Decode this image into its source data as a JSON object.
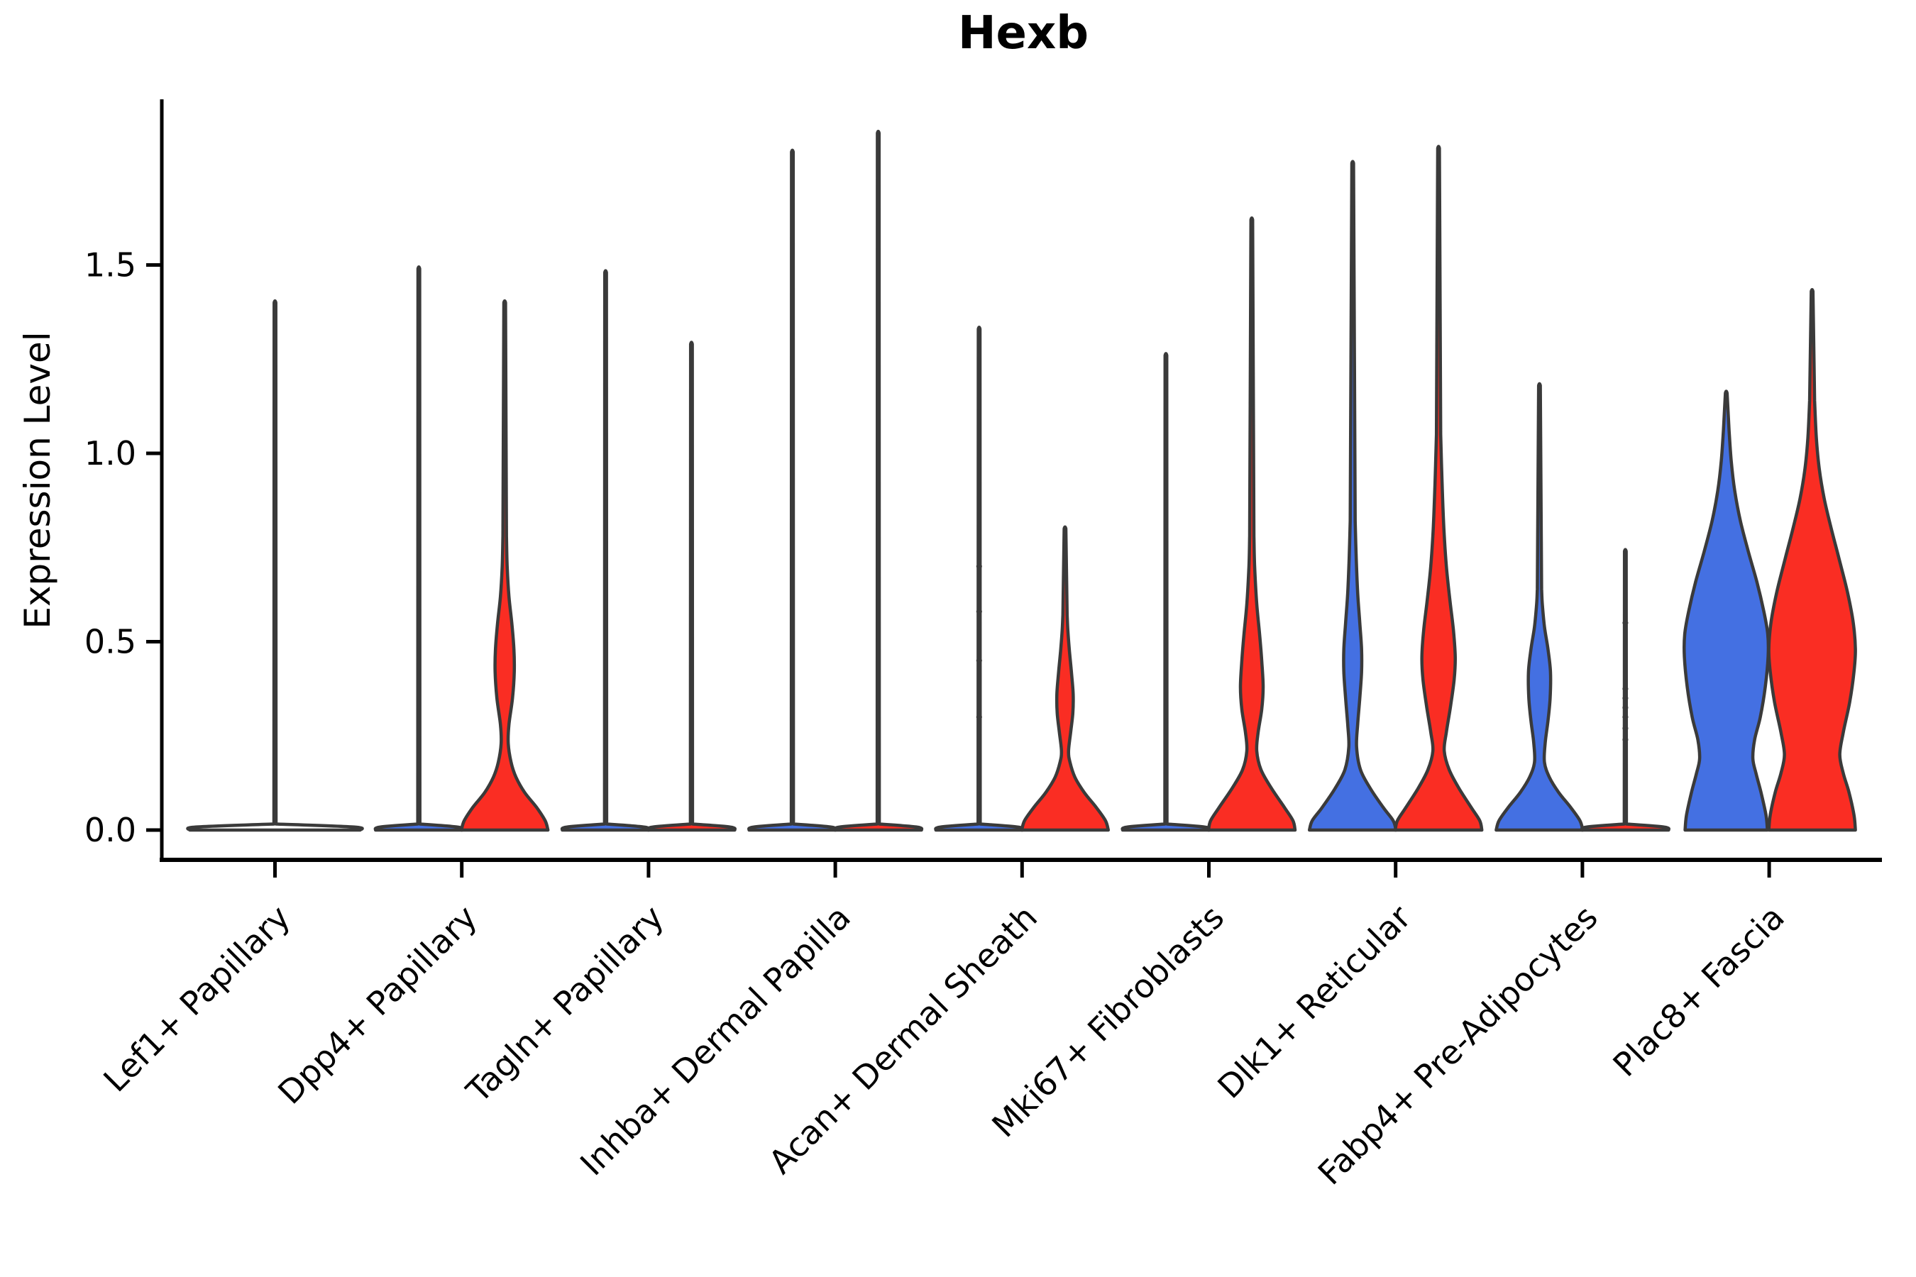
{
  "chart_data": {
    "type": "violin",
    "title": "Hexb",
    "ylabel": "Expression Level",
    "ylim": [
      -0.08,
      1.95
    ],
    "grid": false,
    "legend": "none",
    "yticks": [
      {
        "v": 0.0,
        "label": "0.0"
      },
      {
        "v": 0.5,
        "label": "0.5"
      },
      {
        "v": 1.0,
        "label": "1.0"
      },
      {
        "v": 1.5,
        "label": "1.5"
      }
    ],
    "group_colors": {
      "blue": "#4470E2",
      "red": "#FA2D23",
      "none": "#FFFFFF"
    },
    "stroke_color": "#3A3A3A",
    "axis_color": "#000000",
    "note": "profile = [expression_value, density_half_width_px]; max = top of distribution spike; offset = horizontal dodge of each group violin from category tick",
    "categories": [
      {
        "label": "Lef1+ Papillary",
        "violins": [
          {
            "group": "none",
            "offset": 0,
            "max": 1.4,
            "profile": [
              [
                0,
                120
              ],
              [
                0.008,
                112
              ],
              [
                0.016,
                1.5
              ]
            ]
          }
        ]
      },
      {
        "label": "Dpp4+ Papillary",
        "violins": [
          {
            "group": "blue",
            "offset": -60.5,
            "max": 1.49,
            "profile": [
              [
                0,
                61
              ],
              [
                0.008,
                55
              ],
              [
                0.016,
                1.5
              ]
            ]
          },
          {
            "group": "red",
            "offset": 60.5,
            "max": 1.4,
            "profile": [
              [
                0,
                61
              ],
              [
                0.025,
                57
              ],
              [
                0.06,
                45
              ],
              [
                0.1,
                28
              ],
              [
                0.14,
                16
              ],
              [
                0.18,
                9
              ],
              [
                0.23,
                5
              ],
              [
                0.28,
                6
              ],
              [
                0.35,
                11
              ],
              [
                0.42,
                13.5
              ],
              [
                0.48,
                13
              ],
              [
                0.55,
                10
              ],
              [
                0.62,
                6
              ],
              [
                0.7,
                3.5
              ],
              [
                0.78,
                2.5
              ]
            ]
          }
        ]
      },
      {
        "label": "Tagln+ Papillary",
        "violins": [
          {
            "group": "blue",
            "offset": -60.5,
            "max": 1.48,
            "profile": [
              [
                0,
                61
              ],
              [
                0.008,
                55
              ],
              [
                0.016,
                1.5
              ]
            ]
          },
          {
            "group": "red",
            "offset": 60.5,
            "max": 1.29,
            "profile": [
              [
                0,
                61
              ],
              [
                0.008,
                55
              ],
              [
                0.016,
                1.5
              ]
            ]
          }
        ]
      },
      {
        "label": "Inhba+ Dermal Papilla",
        "violins": [
          {
            "group": "blue",
            "offset": -60.5,
            "max": 1.8,
            "profile": [
              [
                0,
                61
              ],
              [
                0.008,
                55
              ],
              [
                0.016,
                1.5
              ]
            ]
          },
          {
            "group": "red",
            "offset": 60.5,
            "max": 1.85,
            "profile": [
              [
                0,
                61
              ],
              [
                0.008,
                55
              ],
              [
                0.016,
                1.5
              ]
            ]
          }
        ]
      },
      {
        "label": "Acan+ Dermal Sheath",
        "violins": [
          {
            "group": "blue",
            "offset": -60.5,
            "max": 1.33,
            "dots": [
              0.3,
              0.45,
              0.58,
              0.7
            ],
            "profile": [
              [
                0,
                61
              ],
              [
                0.008,
                55
              ],
              [
                0.016,
                1.5
              ]
            ]
          },
          {
            "group": "red",
            "offset": 60.5,
            "max": 0.8,
            "profile": [
              [
                0,
                61
              ],
              [
                0.025,
                57
              ],
              [
                0.06,
                44
              ],
              [
                0.1,
                27
              ],
              [
                0.14,
                14
              ],
              [
                0.18,
                7
              ],
              [
                0.21,
                5
              ],
              [
                0.26,
                8
              ],
              [
                0.31,
                11
              ],
              [
                0.36,
                11.5
              ],
              [
                0.42,
                9
              ],
              [
                0.48,
                6
              ],
              [
                0.53,
                4
              ],
              [
                0.57,
                3
              ]
            ]
          }
        ]
      },
      {
        "label": "Mki67+ Fibroblasts",
        "violins": [
          {
            "group": "blue",
            "offset": -60.5,
            "max": 1.26,
            "profile": [
              [
                0,
                61
              ],
              [
                0.008,
                55
              ],
              [
                0.016,
                1.5
              ]
            ]
          },
          {
            "group": "red",
            "offset": 60.5,
            "max": 1.62,
            "profile": [
              [
                0,
                61
              ],
              [
                0.025,
                58
              ],
              [
                0.06,
                46
              ],
              [
                0.11,
                28
              ],
              [
                0.16,
                13
              ],
              [
                0.21,
                7
              ],
              [
                0.26,
                9
              ],
              [
                0.32,
                14
              ],
              [
                0.38,
                16
              ],
              [
                0.45,
                14
              ],
              [
                0.52,
                11
              ],
              [
                0.6,
                7
              ],
              [
                0.7,
                4
              ],
              [
                0.78,
                3
              ]
            ]
          }
        ]
      },
      {
        "label": "Dlk1+ Reticular",
        "violins": [
          {
            "group": "blue",
            "offset": -60.5,
            "max": 1.77,
            "profile": [
              [
                0,
                61
              ],
              [
                0.025,
                57
              ],
              [
                0.06,
                43
              ],
              [
                0.11,
                25
              ],
              [
                0.16,
                11
              ],
              [
                0.22,
                5.5
              ],
              [
                0.28,
                7
              ],
              [
                0.35,
                10
              ],
              [
                0.42,
                12.5
              ],
              [
                0.48,
                12.5
              ],
              [
                0.55,
                10
              ],
              [
                0.63,
                7
              ],
              [
                0.72,
                5
              ],
              [
                0.82,
                3.5
              ]
            ]
          },
          {
            "group": "red",
            "offset": 60.5,
            "max": 1.81,
            "profile": [
              [
                0,
                61
              ],
              [
                0.025,
                58
              ],
              [
                0.06,
                46
              ],
              [
                0.11,
                29
              ],
              [
                0.16,
                15
              ],
              [
                0.21,
                8
              ],
              [
                0.26,
                11
              ],
              [
                0.33,
                17
              ],
              [
                0.4,
                22
              ],
              [
                0.46,
                23.5
              ],
              [
                0.53,
                21
              ],
              [
                0.61,
                16
              ],
              [
                0.7,
                11
              ],
              [
                0.8,
                7.5
              ],
              [
                0.92,
                5
              ],
              [
                1.05,
                3
              ]
            ]
          }
        ]
      },
      {
        "label": "Fabp4+ Pre-Adipocytes",
        "violins": [
          {
            "group": "blue",
            "offset": -60.5,
            "max": 1.18,
            "profile": [
              [
                0,
                61
              ],
              [
                0.025,
                57
              ],
              [
                0.06,
                44
              ],
              [
                0.1,
                27
              ],
              [
                0.14,
                14
              ],
              [
                0.18,
                7
              ],
              [
                0.23,
                8
              ],
              [
                0.29,
                12
              ],
              [
                0.35,
                15
              ],
              [
                0.42,
                15.5
              ],
              [
                0.48,
                12
              ],
              [
                0.54,
                7
              ],
              [
                0.6,
                4
              ],
              [
                0.64,
                3
              ]
            ]
          },
          {
            "group": "red",
            "offset": 60.5,
            "max": 0.74,
            "dots": [
              0.55,
              0.375,
              0.35,
              0.325,
              0.3,
              0.27,
              0.24
            ],
            "profile": [
              [
                0,
                61
              ],
              [
                0.008,
                55
              ],
              [
                0.016,
                1.5
              ]
            ]
          }
        ]
      },
      {
        "label": "Plac8+ Fascia",
        "violins": [
          {
            "group": "blue",
            "offset": -60.5,
            "max": 1.16,
            "profile": [
              [
                0,
                58
              ],
              [
                0.04,
                56
              ],
              [
                0.1,
                49
              ],
              [
                0.15,
                42
              ],
              [
                0.19,
                37.5
              ],
              [
                0.24,
                40
              ],
              [
                0.3,
                48
              ],
              [
                0.38,
                55
              ],
              [
                0.46,
                59
              ],
              [
                0.52,
                58.5
              ],
              [
                0.58,
                53
              ],
              [
                0.66,
                43
              ],
              [
                0.74,
                31
              ],
              [
                0.82,
                20
              ],
              [
                0.9,
                12
              ],
              [
                0.98,
                7
              ],
              [
                1.06,
                4
              ]
            ]
          },
          {
            "group": "red",
            "offset": 60.5,
            "max": 1.43,
            "profile": [
              [
                0,
                61
              ],
              [
                0.04,
                59
              ],
              [
                0.1,
                52
              ],
              [
                0.15,
                44
              ],
              [
                0.2,
                39
              ],
              [
                0.26,
                44
              ],
              [
                0.34,
                53
              ],
              [
                0.42,
                59
              ],
              [
                0.48,
                61
              ],
              [
                0.55,
                58
              ],
              [
                0.63,
                50
              ],
              [
                0.72,
                38
              ],
              [
                0.8,
                27
              ],
              [
                0.88,
                17
              ],
              [
                0.96,
                10
              ],
              [
                1.04,
                6
              ],
              [
                1.14,
                3.5
              ]
            ]
          }
        ]
      }
    ]
  }
}
